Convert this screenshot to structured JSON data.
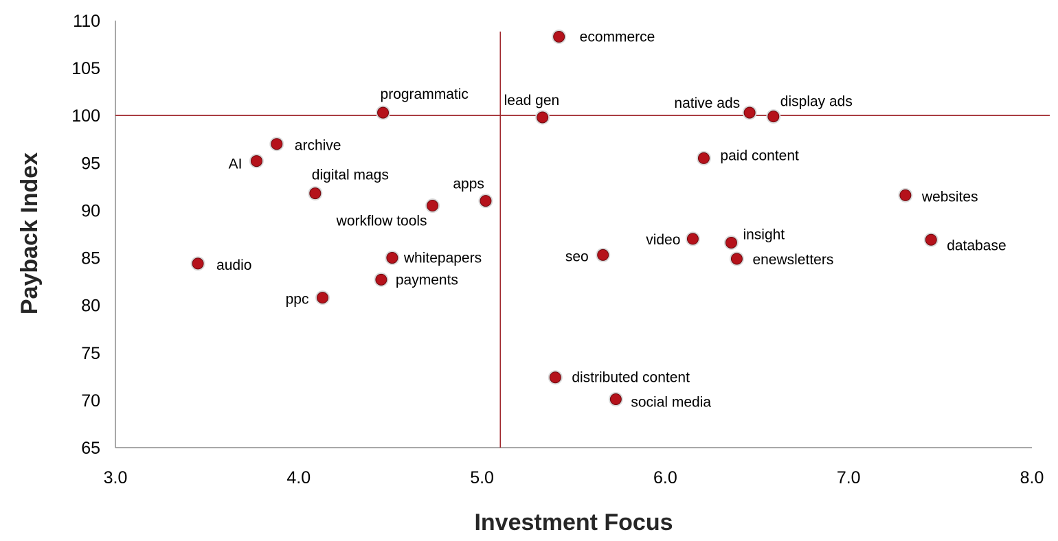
{
  "chart_data": {
    "type": "scatter",
    "title": "",
    "xlabel": "Investment Focus",
    "ylabel": "Payback Index",
    "xlim": [
      3.0,
      8.0
    ],
    "ylim": [
      65,
      110
    ],
    "x_ticks": [
      "3.0",
      "4.0",
      "5.0",
      "6.0",
      "7.0",
      "8.0"
    ],
    "y_ticks": [
      "65",
      "70",
      "75",
      "80",
      "85",
      "90",
      "95",
      "100",
      "105",
      "110"
    ],
    "grid": false,
    "legend": "none",
    "reference_lines": {
      "x": 5.1,
      "y": 100,
      "color": "#a0282d"
    },
    "marker_color": "#b5121b",
    "points": [
      {
        "label": "ecommerce",
        "x": 5.42,
        "y": 108.3
      },
      {
        "label": "programmatic",
        "x": 4.46,
        "y": 100.3
      },
      {
        "label": "lead gen",
        "x": 5.33,
        "y": 99.8
      },
      {
        "label": "native ads",
        "x": 6.46,
        "y": 100.3
      },
      {
        "label": "display ads",
        "x": 6.59,
        "y": 99.9
      },
      {
        "label": "archive",
        "x": 3.88,
        "y": 97.0
      },
      {
        "label": "AI",
        "x": 3.77,
        "y": 95.2
      },
      {
        "label": "paid content",
        "x": 6.21,
        "y": 95.5
      },
      {
        "label": "digital mags",
        "x": 4.09,
        "y": 91.8
      },
      {
        "label": "apps",
        "x": 5.02,
        "y": 91.0
      },
      {
        "label": "workflow tools",
        "x": 4.73,
        "y": 90.5
      },
      {
        "label": "websites",
        "x": 7.31,
        "y": 91.6
      },
      {
        "label": "video",
        "x": 6.15,
        "y": 87.0
      },
      {
        "label": "insight",
        "x": 6.36,
        "y": 86.6
      },
      {
        "label": "database",
        "x": 7.45,
        "y": 86.9
      },
      {
        "label": "seo",
        "x": 5.66,
        "y": 85.3
      },
      {
        "label": "enewsletters",
        "x": 6.39,
        "y": 84.9
      },
      {
        "label": "audio",
        "x": 3.45,
        "y": 84.4
      },
      {
        "label": "whitepapers",
        "x": 4.51,
        "y": 85.0
      },
      {
        "label": "payments",
        "x": 4.45,
        "y": 82.7
      },
      {
        "label": "ppc",
        "x": 4.13,
        "y": 80.8
      },
      {
        "label": "distributed content",
        "x": 5.4,
        "y": 72.4
      },
      {
        "label": "social media",
        "x": 5.73,
        "y": 70.1
      }
    ]
  }
}
